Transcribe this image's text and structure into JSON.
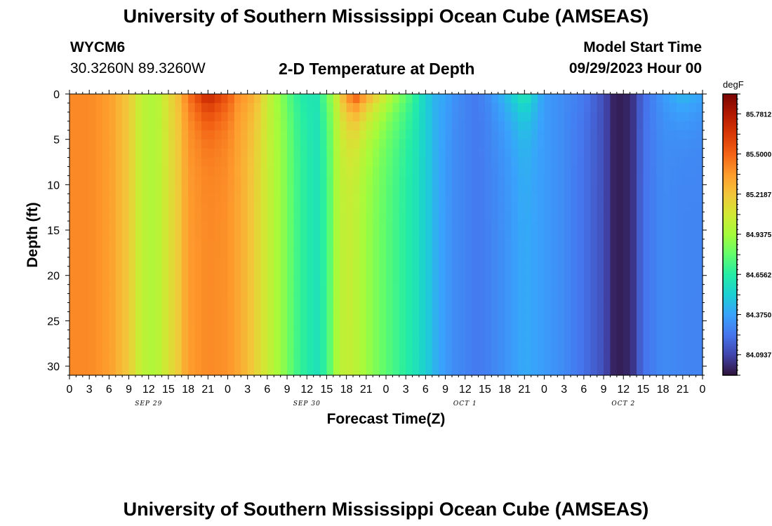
{
  "page": {
    "title": "University of Southern Mississippi Ocean Cube (AMSEAS)",
    "station": "WYCM6",
    "coords": "30.3260N  89.3260W",
    "subtitle": "2-D Temperature at Depth",
    "model_label": "Model Start Time",
    "model_time": "09/29/2023 Hour 00",
    "footer_title": "University of Southern Mississippi Ocean Cube (AMSEAS)"
  },
  "chart_data": {
    "type": "heatmap",
    "title": "2-D Temperature at Depth",
    "xlabel": "Forecast Time(Z)",
    "ylabel": "Depth (ft)",
    "xlim": [
      0,
      96
    ],
    "ylim": [
      31,
      0
    ],
    "x_tick_labels": [
      "0",
      "3",
      "6",
      "9",
      "12",
      "15",
      "18",
      "21",
      "0",
      "3",
      "6",
      "9",
      "12",
      "15",
      "18",
      "21",
      "0",
      "3",
      "6",
      "9",
      "12",
      "15",
      "18",
      "21",
      "0",
      "3",
      "6",
      "9",
      "12",
      "15",
      "18",
      "21",
      "0"
    ],
    "y_ticks": [
      0,
      5,
      10,
      15,
      20,
      25,
      30
    ],
    "y_tick_labels": [
      "0",
      "5",
      "10",
      "15",
      "20",
      "25",
      "30"
    ],
    "day_labels": [
      {
        "label": "SEP 29",
        "hour": 12
      },
      {
        "label": "SEP 30",
        "hour": 36
      },
      {
        "label": "OCT 1",
        "hour": 60
      },
      {
        "label": "OCT 2",
        "hour": 84
      }
    ],
    "colorbar": {
      "unit": "degF",
      "min": 83.95,
      "max": 85.92,
      "tick_values": [
        85.7812,
        85.5,
        85.2187,
        84.9375,
        84.6562,
        84.375,
        84.0937
      ],
      "tick_labels": [
        "85.7812",
        "85.5000",
        "85.2187",
        "84.9375",
        "84.6562",
        "84.3750",
        "84.0937"
      ]
    },
    "series": [
      {
        "hours": [
          0,
          3,
          6,
          9,
          10.5,
          12,
          13.5,
          16.5,
          18,
          21,
          24,
          25.5,
          27,
          28.5,
          30,
          33,
          34,
          36,
          37.5,
          39,
          40.5,
          42,
          43.5,
          45,
          48,
          51,
          52.5,
          54,
          55.5,
          57,
          58.5,
          60,
          61.5,
          63,
          66,
          69,
          72,
          75,
          78,
          81,
          82.5,
          84,
          85.5,
          87,
          90,
          93,
          96
        ],
        "surface_degF": [
          85.4,
          85.4,
          85.35,
          85.2,
          85.05,
          84.97,
          85.0,
          85.25,
          85.45,
          85.75,
          85.55,
          85.4,
          85.35,
          85.25,
          85.05,
          84.8,
          84.7,
          84.62,
          84.62,
          84.8,
          85.05,
          85.4,
          85.55,
          85.35,
          85.05,
          84.8,
          84.67,
          84.52,
          84.42,
          84.38,
          84.32,
          84.28,
          84.25,
          84.28,
          84.45,
          84.65,
          84.35,
          84.3,
          84.25,
          84.12,
          84.0,
          83.98,
          84.05,
          84.2,
          84.35,
          84.45,
          84.38
        ],
        "deep_degF": [
          85.4,
          85.4,
          85.35,
          85.2,
          85.05,
          84.97,
          85.0,
          85.2,
          85.35,
          85.4,
          85.38,
          85.32,
          85.25,
          85.15,
          85.05,
          84.85,
          84.75,
          84.65,
          84.6,
          84.7,
          84.95,
          85.05,
          85.0,
          84.92,
          84.78,
          84.66,
          84.6,
          84.52,
          84.42,
          84.35,
          84.3,
          84.28,
          84.25,
          84.26,
          84.32,
          84.4,
          84.35,
          84.3,
          84.22,
          84.12,
          84.0,
          83.98,
          84.05,
          84.22,
          84.3,
          84.28,
          84.28
        ]
      }
    ]
  },
  "colors": {
    "colormap": [
      "#30123b",
      "#4145ab",
      "#4675ed",
      "#39a2fc",
      "#1bcfd4",
      "#24eca6",
      "#61fc6c",
      "#a4fc3b",
      "#d1e834",
      "#f3c63a",
      "#fe9b2d",
      "#f36315",
      "#d93806",
      "#b11901",
      "#7a0402"
    ]
  }
}
